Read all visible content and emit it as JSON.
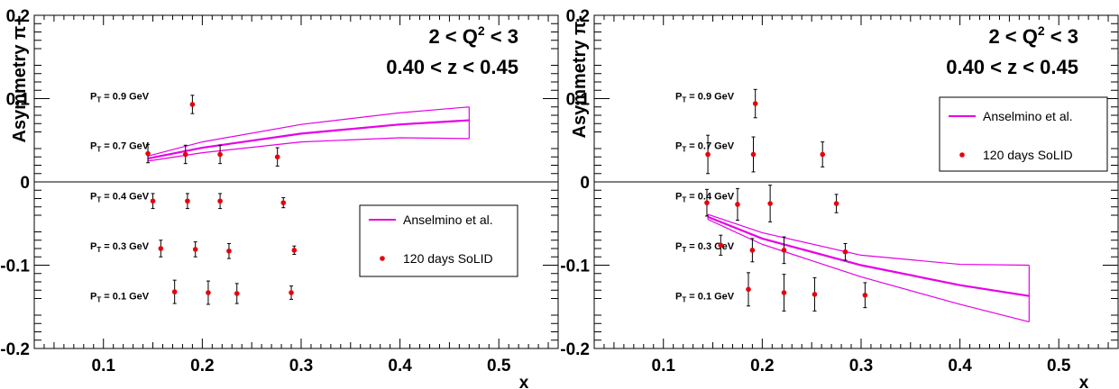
{
  "chart_data": [
    {
      "type": "scatter",
      "panel": "left",
      "title_lines": [
        "2 < Q2 < 3",
        "0.40 < z < 0.45"
      ],
      "ylabel": "Asymmetry π+",
      "xlabel": "x",
      "xlim": [
        0.03,
        0.56
      ],
      "ylim": [
        -0.2,
        0.2
      ],
      "xticks": [
        0.1,
        0.2,
        0.3,
        0.4,
        0.5
      ],
      "xtick_labels": [
        "0.1",
        "0.2",
        "0.3",
        "0.4",
        "0.5"
      ],
      "yticks": [
        -0.2,
        -0.1,
        0,
        0.1,
        0.2
      ],
      "ytick_labels": [
        "-0.2",
        "-0.1",
        "0",
        "0.1",
        "0.2"
      ],
      "zero_line": true,
      "legend": {
        "position": "center-right",
        "entries": [
          {
            "label": "Anselmino et al.",
            "type": "line",
            "color": "#e600e6"
          },
          {
            "label": "120 days SoLID",
            "type": "marker",
            "color": "#e8000b"
          }
        ]
      },
      "pt_labels": [
        {
          "main": "P",
          "sub": "T",
          "rest": " = 0.9 GeV",
          "y": 0.103
        },
        {
          "main": "P",
          "sub": "T",
          "rest": " = 0.7 GeV",
          "y": 0.044
        },
        {
          "main": "P",
          "sub": "T",
          "rest": " = 0.4 GeV",
          "y": -0.017
        },
        {
          "main": "P",
          "sub": "T",
          "rest": " = 0.3 GeV",
          "y": -0.077
        },
        {
          "main": "P",
          "sub": "T",
          "rest": " = 0.1 GeV",
          "y": -0.137
        }
      ],
      "band": {
        "x": [
          0.145,
          0.2,
          0.3,
          0.4,
          0.47
        ],
        "center": [
          0.028,
          0.041,
          0.058,
          0.069,
          0.074
        ],
        "upper": [
          0.031,
          0.048,
          0.069,
          0.083,
          0.09
        ],
        "lower": [
          0.025,
          0.035,
          0.048,
          0.053,
          0.052
        ]
      },
      "series": [
        {
          "name": "120 days SoLID",
          "points": [
            {
              "x": 0.19,
              "y": 0.093,
              "err": 0.011
            },
            {
              "x": 0.145,
              "y": 0.034,
              "err": 0.011
            },
            {
              "x": 0.183,
              "y": 0.033,
              "err": 0.011
            },
            {
              "x": 0.218,
              "y": 0.033,
              "err": 0.011
            },
            {
              "x": 0.276,
              "y": 0.03,
              "err": 0.011
            },
            {
              "x": 0.15,
              "y": -0.023,
              "err": 0.009
            },
            {
              "x": 0.185,
              "y": -0.023,
              "err": 0.009
            },
            {
              "x": 0.218,
              "y": -0.023,
              "err": 0.009
            },
            {
              "x": 0.282,
              "y": -0.025,
              "err": 0.006
            },
            {
              "x": 0.158,
              "y": -0.08,
              "err": 0.01
            },
            {
              "x": 0.193,
              "y": -0.081,
              "err": 0.009
            },
            {
              "x": 0.227,
              "y": -0.083,
              "err": 0.009
            },
            {
              "x": 0.293,
              "y": -0.082,
              "err": 0.005
            },
            {
              "x": 0.172,
              "y": -0.132,
              "err": 0.014
            },
            {
              "x": 0.206,
              "y": -0.133,
              "err": 0.014
            },
            {
              "x": 0.235,
              "y": -0.134,
              "err": 0.012
            },
            {
              "x": 0.29,
              "y": -0.133,
              "err": 0.008
            }
          ]
        }
      ]
    },
    {
      "type": "scatter",
      "panel": "right",
      "title_lines": [
        "2 < Q2 < 3",
        "0.40 < z < 0.45"
      ],
      "ylabel": "Asymmetry π-",
      "xlabel": "x",
      "xlim": [
        0.03,
        0.56
      ],
      "ylim": [
        -0.2,
        0.2
      ],
      "xticks": [
        0.1,
        0.2,
        0.3,
        0.4,
        0.5
      ],
      "xtick_labels": [
        "0.1",
        "0.2",
        "0.3",
        "0.4",
        "0.5"
      ],
      "yticks": [
        -0.2,
        -0.1,
        0,
        0.1,
        0.2
      ],
      "ytick_labels": [
        "-0.2",
        "-0.1",
        "0",
        "0.1",
        "0.2"
      ],
      "zero_line": true,
      "legend": {
        "position": "top-right",
        "entries": [
          {
            "label": "Anselmino et al.",
            "type": "line",
            "color": "#e600e6"
          },
          {
            "label": "120 days SoLID",
            "type": "marker",
            "color": "#e8000b"
          }
        ]
      },
      "pt_labels": [
        {
          "main": "P",
          "sub": "T",
          "rest": " = 0.9 GeV",
          "y": 0.103
        },
        {
          "main": "P",
          "sub": "T",
          "rest": " = 0.7 GeV",
          "y": 0.044
        },
        {
          "main": "P",
          "sub": "T",
          "rest": " = 0.4 GeV",
          "y": -0.017
        },
        {
          "main": "P",
          "sub": "T",
          "rest": " = 0.3 GeV",
          "y": -0.077
        },
        {
          "main": "P",
          "sub": "T",
          "rest": " = 0.1 GeV",
          "y": -0.137
        }
      ],
      "band": {
        "x": [
          0.145,
          0.2,
          0.3,
          0.4,
          0.47
        ],
        "center": [
          -0.042,
          -0.068,
          -0.1,
          -0.124,
          -0.137
        ],
        "upper": [
          -0.039,
          -0.061,
          -0.088,
          -0.099,
          -0.1
        ],
        "lower": [
          -0.045,
          -0.075,
          -0.114,
          -0.147,
          -0.168
        ]
      },
      "series": [
        {
          "name": "120 days SoLID",
          "points": [
            {
              "x": 0.193,
              "y": 0.094,
              "err": 0.017
            },
            {
              "x": 0.145,
              "y": 0.033,
              "err": 0.023
            },
            {
              "x": 0.191,
              "y": 0.033,
              "err": 0.021
            },
            {
              "x": 0.261,
              "y": 0.033,
              "err": 0.015
            },
            {
              "x": 0.144,
              "y": -0.025,
              "err": 0.016
            },
            {
              "x": 0.175,
              "y": -0.027,
              "err": 0.019
            },
            {
              "x": 0.208,
              "y": -0.026,
              "err": 0.022
            },
            {
              "x": 0.275,
              "y": -0.026,
              "err": 0.011
            },
            {
              "x": 0.158,
              "y": -0.076,
              "err": 0.012
            },
            {
              "x": 0.19,
              "y": -0.082,
              "err": 0.014
            },
            {
              "x": 0.222,
              "y": -0.082,
              "err": 0.016
            },
            {
              "x": 0.284,
              "y": -0.084,
              "err": 0.01
            },
            {
              "x": 0.186,
              "y": -0.129,
              "err": 0.02
            },
            {
              "x": 0.222,
              "y": -0.133,
              "err": 0.022
            },
            {
              "x": 0.253,
              "y": -0.135,
              "err": 0.02
            },
            {
              "x": 0.304,
              "y": -0.136,
              "err": 0.015
            }
          ]
        }
      ]
    }
  ]
}
